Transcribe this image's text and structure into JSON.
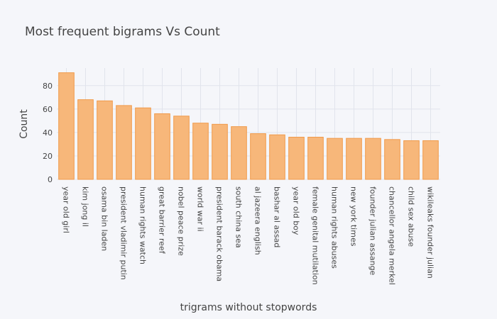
{
  "chart_data": {
    "type": "bar",
    "title": "Most frequent bigrams Vs Count",
    "xlabel": "trigrams without stopwords",
    "ylabel": "Count",
    "ylim": [
      0,
      95
    ],
    "yticks": [
      0,
      20,
      40,
      60,
      80
    ],
    "grid": true,
    "bar_color": "#f7b77a",
    "bar_edge_color": "#f09a4a",
    "categories": [
      "year old girl",
      "kim jong il",
      "osama bin laden",
      "president vladimir putin",
      "human rights watch",
      "great barrier reef",
      "nobel peace prize",
      "world war ii",
      "president barack obama",
      "south china sea",
      "al jazeera english",
      "bashar al assad",
      "year old boy",
      "female genital mutilation",
      "human rights abuses",
      "new york times",
      "founder julian assange",
      "chancellor angela merkel",
      "child sex abuse",
      "wikileaks founder julian"
    ],
    "values": [
      91,
      68,
      67,
      63,
      61,
      56,
      54,
      48,
      47,
      45,
      39,
      38,
      36,
      36,
      35,
      35,
      35,
      34,
      33,
      33
    ]
  }
}
